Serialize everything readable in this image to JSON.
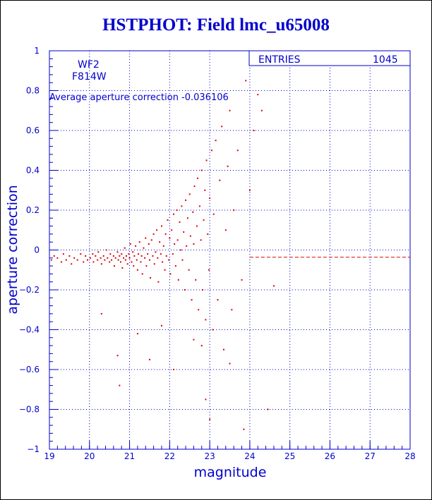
{
  "title": "HSTPHOT: Field lmc_u65008",
  "chart_data": {
    "type": "scatter",
    "title": "HSTPHOT: Field lmc_u65008",
    "xlabel": "magnitude",
    "ylabel": "aperture correction",
    "xlim": [
      19,
      28
    ],
    "ylim": [
      -1,
      1
    ],
    "xticks": [
      19,
      20,
      21,
      22,
      23,
      24,
      25,
      26,
      27,
      28
    ],
    "yticks": [
      -1,
      -0.8,
      -0.6,
      -0.4,
      -0.2,
      0,
      0.2,
      0.4,
      0.6,
      0.8,
      1
    ],
    "grid": true,
    "annotations": {
      "chip": "WF2",
      "filter": "F814W",
      "average": "Average aperture correction -0.036106"
    },
    "stats": {
      "entries_label": "ENTRIES",
      "entries_value": "1045"
    },
    "reference_line": {
      "y": -0.036106,
      "x_start": 24
    },
    "colors": {
      "axes": "#0000cc",
      "points": "#dd0000",
      "title": "#0000cc"
    },
    "points": [
      [
        19.05,
        -0.05
      ],
      [
        19.12,
        -0.03
      ],
      [
        19.2,
        -0.04
      ],
      [
        19.3,
        -0.06
      ],
      [
        19.35,
        -0.02
      ],
      [
        19.42,
        -0.05
      ],
      [
        19.5,
        -0.03
      ],
      [
        19.55,
        -0.07
      ],
      [
        19.62,
        -0.04
      ],
      [
        19.7,
        -0.05
      ],
      [
        19.78,
        -0.02
      ],
      [
        19.85,
        -0.06
      ],
      [
        19.9,
        -0.03
      ],
      [
        19.95,
        -0.05
      ],
      [
        20.02,
        -0.04
      ],
      [
        20.08,
        -0.02
      ],
      [
        20.1,
        -0.06
      ],
      [
        20.15,
        -0.03
      ],
      [
        20.2,
        -0.05
      ],
      [
        20.22,
        -0.01
      ],
      [
        20.28,
        -0.04
      ],
      [
        20.3,
        -0.07
      ],
      [
        20.35,
        -0.03
      ],
      [
        20.38,
        -0.05
      ],
      [
        20.42,
        0.0
      ],
      [
        20.45,
        -0.04
      ],
      [
        20.5,
        -0.06
      ],
      [
        20.52,
        -0.02
      ],
      [
        20.55,
        -0.05
      ],
      [
        20.6,
        -0.03
      ],
      [
        20.62,
        -0.08
      ],
      [
        20.65,
        -0.04
      ],
      [
        20.7,
        -0.01
      ],
      [
        20.72,
        -0.05
      ],
      [
        20.75,
        -0.03
      ],
      [
        20.78,
        -0.06
      ],
      [
        20.8,
        -0.02
      ],
      [
        20.82,
        -0.09
      ],
      [
        20.85,
        -0.04
      ],
      [
        20.88,
        0.01
      ],
      [
        20.9,
        -0.05
      ],
      [
        20.92,
        -0.03
      ],
      [
        20.95,
        -0.07
      ],
      [
        20.98,
        -0.02
      ],
      [
        21.0,
        -0.04
      ],
      [
        21.02,
        0.03
      ],
      [
        21.05,
        -0.06
      ],
      [
        21.08,
        -0.01
      ],
      [
        21.1,
        -0.08
      ],
      [
        21.12,
        -0.03
      ],
      [
        21.15,
        0.02
      ],
      [
        21.18,
        -0.05
      ],
      [
        21.2,
        -0.1
      ],
      [
        21.22,
        -0.02
      ],
      [
        21.25,
        0.04
      ],
      [
        21.28,
        -0.06
      ],
      [
        21.3,
        -0.03
      ],
      [
        21.32,
        -0.12
      ],
      [
        21.35,
        0.01
      ],
      [
        21.38,
        -0.04
      ],
      [
        21.4,
        0.06
      ],
      [
        21.42,
        -0.08
      ],
      [
        21.45,
        -0.02
      ],
      [
        21.48,
        0.03
      ],
      [
        21.5,
        -0.05
      ],
      [
        21.52,
        -0.14
      ],
      [
        21.55,
        0.05
      ],
      [
        21.58,
        -0.03
      ],
      [
        21.6,
        0.08
      ],
      [
        21.62,
        -0.07
      ],
      [
        21.65,
        -0.01
      ],
      [
        21.68,
        0.1
      ],
      [
        21.7,
        -0.04
      ],
      [
        21.72,
        -0.16
      ],
      [
        21.75,
        0.04
      ],
      [
        21.78,
        -0.02
      ],
      [
        21.8,
        0.12
      ],
      [
        21.82,
        -0.06
      ],
      [
        21.85,
        0.02
      ],
      [
        21.88,
        -0.1
      ],
      [
        21.9,
        0.08
      ],
      [
        21.92,
        -0.03
      ],
      [
        21.95,
        0.15
      ],
      [
        21.98,
        -0.05
      ],
      [
        22.0,
        0.06
      ],
      [
        22.02,
        -0.12
      ],
      [
        22.05,
        0.1
      ],
      [
        22.08,
        -0.02
      ],
      [
        22.1,
        0.18
      ],
      [
        22.12,
        0.03
      ],
      [
        22.15,
        -0.08
      ],
      [
        22.18,
        0.2
      ],
      [
        22.2,
        0.05
      ],
      [
        22.22,
        -0.15
      ],
      [
        22.25,
        0.14
      ],
      [
        22.28,
        0.0
      ],
      [
        22.3,
        0.22
      ],
      [
        22.32,
        -0.05
      ],
      [
        22.35,
        0.09
      ],
      [
        22.38,
        -0.2
      ],
      [
        22.4,
        0.25
      ],
      [
        22.42,
        0.02
      ],
      [
        22.45,
        0.16
      ],
      [
        22.48,
        -0.1
      ],
      [
        22.5,
        0.28
      ],
      [
        22.52,
        0.07
      ],
      [
        22.55,
        -0.25
      ],
      [
        22.58,
        0.19
      ],
      [
        22.6,
        0.03
      ],
      [
        22.62,
        0.32
      ],
      [
        22.65,
        -0.15
      ],
      [
        22.68,
        0.12
      ],
      [
        22.7,
        0.36
      ],
      [
        22.72,
        -0.3
      ],
      [
        22.75,
        0.22
      ],
      [
        22.78,
        0.05
      ],
      [
        22.8,
        0.4
      ],
      [
        22.82,
        -0.2
      ],
      [
        22.85,
        0.15
      ],
      [
        22.88,
        0.3
      ],
      [
        22.9,
        -0.35
      ],
      [
        22.92,
        0.45
      ],
      [
        22.95,
        0.08
      ],
      [
        22.98,
        -0.1
      ],
      [
        23.0,
        0.26
      ],
      [
        23.05,
        0.5
      ],
      [
        23.08,
        -0.4
      ],
      [
        23.1,
        0.18
      ],
      [
        23.15,
        0.55
      ],
      [
        23.2,
        -0.25
      ],
      [
        23.25,
        0.35
      ],
      [
        23.3,
        0.62
      ],
      [
        23.35,
        -0.5
      ],
      [
        23.4,
        0.1
      ],
      [
        23.45,
        0.42
      ],
      [
        23.5,
        0.7
      ],
      [
        23.55,
        -0.3
      ],
      [
        23.6,
        0.2
      ],
      [
        23.7,
        0.5
      ],
      [
        23.8,
        -0.15
      ],
      [
        23.9,
        0.85
      ],
      [
        24.0,
        0.3
      ],
      [
        24.1,
        0.6
      ],
      [
        24.2,
        0.78
      ],
      [
        24.3,
        0.7
      ],
      [
        24.45,
        -0.8
      ],
      [
        24.6,
        -0.18
      ],
      [
        23.85,
        -0.9
      ],
      [
        23.0,
        -0.85
      ],
      [
        22.9,
        -0.75
      ],
      [
        20.75,
        -0.68
      ],
      [
        20.7,
        -0.53
      ],
      [
        21.5,
        -0.55
      ],
      [
        22.1,
        -0.6
      ],
      [
        23.5,
        -0.57
      ],
      [
        21.2,
        -0.42
      ],
      [
        22.8,
        -0.48
      ],
      [
        20.3,
        -0.32
      ],
      [
        21.8,
        -0.38
      ],
      [
        22.6,
        -0.45
      ]
    ]
  }
}
